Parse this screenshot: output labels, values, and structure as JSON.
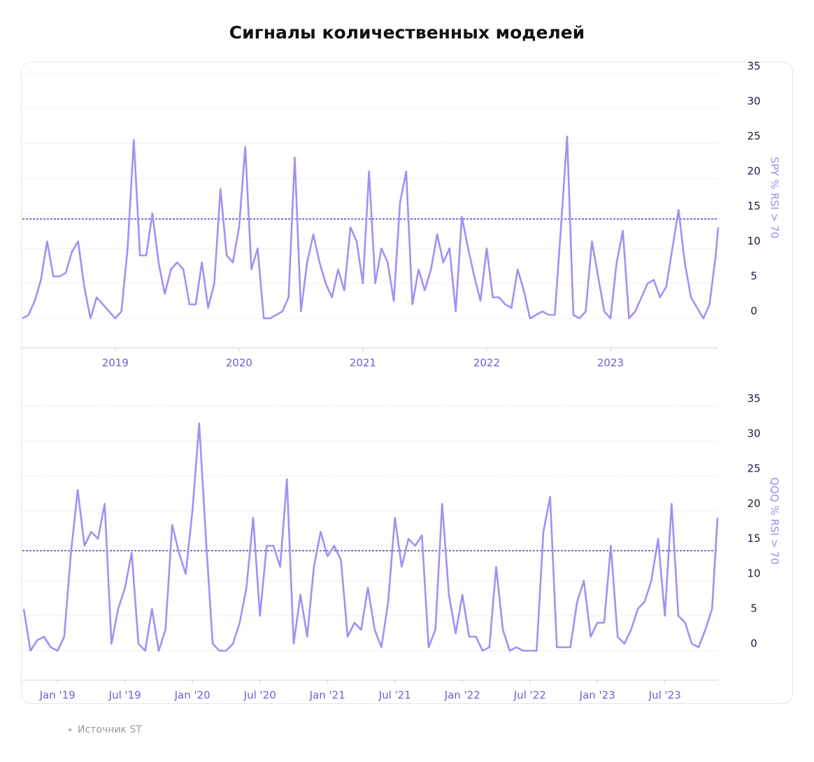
{
  "title": "Сигналы количественных моделей",
  "source": "Источник ST",
  "chart_data": [
    {
      "type": "line",
      "y_label": "SPY % RSI > 70",
      "x": [
        2018.25,
        2018.3,
        2018.35,
        2018.4,
        2018.45,
        2018.5,
        2018.55,
        2018.6,
        2018.65,
        2018.7,
        2018.75,
        2018.8,
        2018.85,
        2018.9,
        2018.95,
        2019,
        2019.05,
        2019.1,
        2019.15,
        2019.2,
        2019.25,
        2019.3,
        2019.35,
        2019.4,
        2019.45,
        2019.5,
        2019.55,
        2019.6,
        2019.65,
        2019.7,
        2019.75,
        2019.8,
        2019.85,
        2019.9,
        2019.95,
        2020,
        2020.05,
        2020.1,
        2020.15,
        2020.2,
        2020.25,
        2020.3,
        2020.35,
        2020.4,
        2020.45,
        2020.5,
        2020.55,
        2020.6,
        2020.65,
        2020.7,
        2020.75,
        2020.8,
        2020.85,
        2020.9,
        2020.95,
        2021,
        2021.05,
        2021.1,
        2021.15,
        2021.2,
        2021.25,
        2021.3,
        2021.35,
        2021.4,
        2021.45,
        2021.5,
        2021.55,
        2021.6,
        2021.65,
        2021.7,
        2021.75,
        2021.8,
        2021.85,
        2021.9,
        2021.95,
        2022,
        2022.05,
        2022.1,
        2022.15,
        2022.2,
        2022.25,
        2022.3,
        2022.35,
        2022.4,
        2022.45,
        2022.5,
        2022.55,
        2022.6,
        2022.65,
        2022.7,
        2022.75,
        2022.8,
        2022.85,
        2022.9,
        2022.95,
        2023,
        2023.05,
        2023.1,
        2023.15,
        2023.2,
        2023.25,
        2023.3,
        2023.35,
        2023.4,
        2023.45,
        2023.5,
        2023.55,
        2023.6,
        2023.65,
        2023.7,
        2023.75,
        2023.8,
        2023.85,
        2023.87
      ],
      "series": [
        {
          "name": "SPY % RSI > 70",
          "color": "#a190f5",
          "values": [
            0,
            0.5,
            2.5,
            5.5,
            11,
            6,
            6,
            6.5,
            9.5,
            11,
            4.5,
            0,
            3,
            2,
            1,
            0,
            1,
            10,
            25.5,
            9,
            9,
            15,
            8,
            3.5,
            7,
            8,
            7,
            2,
            2,
            8,
            1.5,
            5,
            18.5,
            9,
            8,
            13,
            24.5,
            7,
            10,
            0,
            0,
            0.5,
            1,
            3,
            23,
            1,
            8,
            12,
            8,
            5,
            3,
            7,
            4,
            13,
            11,
            5,
            21,
            5,
            10,
            8,
            2.5,
            16.5,
            21,
            2,
            7,
            4,
            7,
            12,
            8,
            10,
            1,
            14.5,
            10,
            6,
            2.5,
            10,
            3,
            3,
            2,
            1.5,
            7,
            4,
            0,
            0.5,
            1,
            0.5,
            0.5,
            13,
            26,
            0.5,
            0,
            1,
            11,
            6,
            1,
            0,
            8,
            12.5,
            0,
            1,
            3,
            5,
            5.5,
            3,
            4.5,
            10,
            15.5,
            8,
            3,
            1.5,
            0,
            2,
            9,
            13
          ]
        }
      ],
      "reference_line": 14.2,
      "xlim": [
        2018.25,
        2023.87
      ],
      "xticks": [
        2019,
        2020,
        2021,
        2022,
        2023
      ],
      "ylim": [
        -4.2,
        36.7
      ],
      "yticks": [
        0,
        5,
        10,
        15,
        20,
        25,
        30,
        35
      ],
      "grid": true
    },
    {
      "type": "line",
      "y_label": "QQQ % RSI > 70",
      "x": [
        2018.75,
        2018.8,
        2018.85,
        2018.9,
        2018.95,
        2019,
        2019.05,
        2019.1,
        2019.15,
        2019.2,
        2019.25,
        2019.3,
        2019.35,
        2019.4,
        2019.45,
        2019.5,
        2019.55,
        2019.6,
        2019.65,
        2019.7,
        2019.75,
        2019.8,
        2019.85,
        2019.9,
        2019.95,
        2020,
        2020.05,
        2020.1,
        2020.15,
        2020.2,
        2020.25,
        2020.3,
        2020.35,
        2020.4,
        2020.45,
        2020.5,
        2020.55,
        2020.6,
        2020.65,
        2020.7,
        2020.75,
        2020.8,
        2020.85,
        2020.9,
        2020.95,
        2021,
        2021.05,
        2021.1,
        2021.15,
        2021.2,
        2021.25,
        2021.3,
        2021.35,
        2021.4,
        2021.45,
        2021.5,
        2021.55,
        2021.6,
        2021.65,
        2021.7,
        2021.75,
        2021.8,
        2021.85,
        2021.9,
        2021.95,
        2022,
        2022.05,
        2022.1,
        2022.15,
        2022.2,
        2022.25,
        2022.3,
        2022.35,
        2022.4,
        2022.45,
        2022.5,
        2022.55,
        2022.6,
        2022.65,
        2022.7,
        2022.75,
        2022.8,
        2022.85,
        2022.9,
        2022.95,
        2023,
        2023.05,
        2023.1,
        2023.15,
        2023.2,
        2023.25,
        2023.3,
        2023.35,
        2023.4,
        2023.45,
        2023.5,
        2023.55,
        2023.6,
        2023.65,
        2023.7,
        2023.75,
        2023.8,
        2023.85,
        2023.89
      ],
      "series": [
        {
          "name": "QQQ % RSI > 70",
          "color": "#a190f5",
          "values": [
            6,
            0,
            1.5,
            2,
            0.5,
            0,
            2,
            14,
            23,
            15,
            17,
            16,
            21,
            1,
            6,
            9,
            14,
            1,
            0,
            6,
            0,
            3,
            18,
            14,
            11,
            20,
            32.5,
            16,
            1,
            0,
            0,
            1,
            4,
            9,
            19,
            5,
            15,
            15,
            12,
            24.5,
            1,
            8,
            2,
            12,
            17,
            13.5,
            15,
            13,
            2,
            4,
            3,
            9,
            3,
            0.5,
            7,
            19,
            12,
            16,
            15,
            16.5,
            0.5,
            3,
            21,
            8,
            2.5,
            8,
            2,
            2,
            0,
            0.5,
            12,
            3,
            0,
            0.5,
            0,
            0,
            0,
            17,
            22,
            0.5,
            0.5,
            0.5,
            7,
            10,
            2,
            4,
            4,
            15,
            2,
            1,
            3,
            6,
            7,
            10,
            16,
            5,
            21,
            5,
            4,
            1,
            0.5,
            3,
            6,
            19
          ]
        }
      ],
      "reference_line": 14.3,
      "xlim": [
        2018.74,
        2023.89
      ],
      "xticks": [
        {
          "value": 2019,
          "label": "Jan '19"
        },
        {
          "value": 2019.5,
          "label": "Jul '19"
        },
        {
          "value": 2020,
          "label": "Jan '20"
        },
        {
          "value": 2020.5,
          "label": "Jul '20"
        },
        {
          "value": 2021,
          "label": "Jan '21"
        },
        {
          "value": 2021.5,
          "label": "Jul '21"
        },
        {
          "value": 2022,
          "label": "Jan '22"
        },
        {
          "value": 2022.5,
          "label": "Jul '22"
        },
        {
          "value": 2023,
          "label": "Jan '23"
        },
        {
          "value": 2023.5,
          "label": "Jul '23"
        }
      ],
      "ylim": [
        -4.2,
        39.3
      ],
      "yticks": [
        0,
        5,
        10,
        15,
        20,
        25,
        30,
        35
      ],
      "grid": true
    }
  ]
}
